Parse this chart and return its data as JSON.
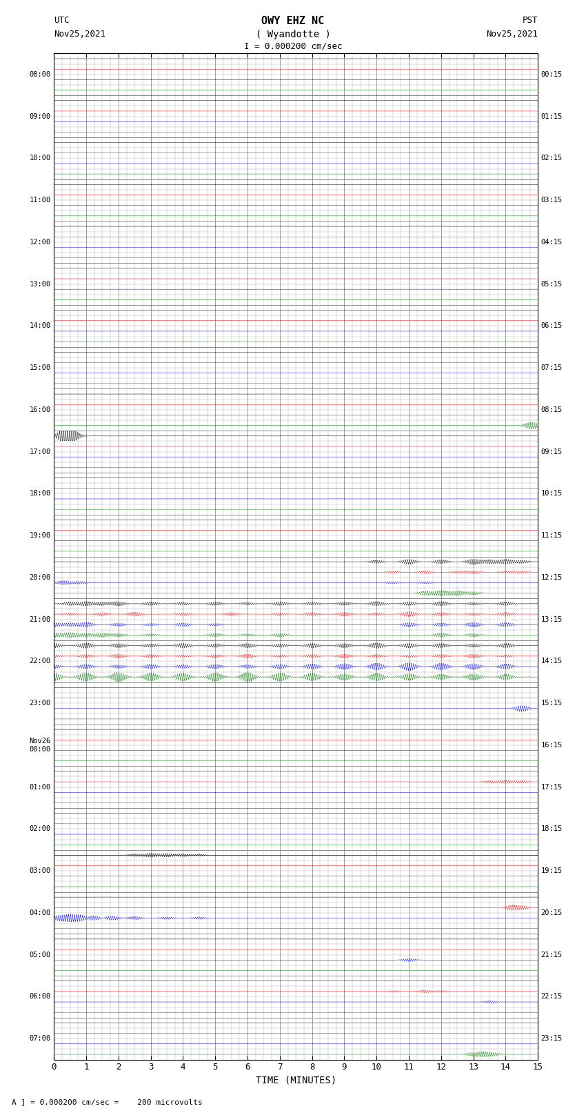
{
  "title_line1": "OWY EHZ NC",
  "title_line2": "( Wyandotte )",
  "scale_label": "I = 0.000200 cm/sec",
  "utc_label_line1": "UTC",
  "utc_label_line2": "Nov25,2021",
  "pst_label_line1": "PST",
  "pst_label_line2": "Nov25,2021",
  "footer_label": "A ] = 0.000200 cm/sec =    200 microvolts",
  "xlabel": "TIME (MINUTES)",
  "left_times": [
    "08:00",
    "09:00",
    "10:00",
    "11:00",
    "12:00",
    "13:00",
    "14:00",
    "15:00",
    "16:00",
    "17:00",
    "18:00",
    "19:00",
    "20:00",
    "21:00",
    "22:00",
    "23:00",
    "Nov26\n00:00",
    "01:00",
    "02:00",
    "03:00",
    "04:00",
    "05:00",
    "06:00",
    "07:00"
  ],
  "right_times": [
    "00:15",
    "01:15",
    "02:15",
    "03:15",
    "04:15",
    "05:15",
    "06:15",
    "07:15",
    "08:15",
    "09:15",
    "10:15",
    "11:15",
    "12:15",
    "13:15",
    "14:15",
    "15:15",
    "16:15",
    "17:15",
    "18:15",
    "19:15",
    "20:15",
    "21:15",
    "22:15",
    "23:15"
  ],
  "n_rows": 24,
  "n_subrows": 4,
  "x_min": 0,
  "x_max": 15,
  "x_ticks": [
    0,
    1,
    2,
    3,
    4,
    5,
    6,
    7,
    8,
    9,
    10,
    11,
    12,
    13,
    14,
    15
  ],
  "bg_color": "#ffffff",
  "grid_color_major": "#777777",
  "grid_color_minor": "#aaaaaa",
  "trace_colors": [
    "black",
    "red",
    "blue",
    "green"
  ],
  "figsize": [
    8.5,
    16.13
  ],
  "dpi": 100
}
